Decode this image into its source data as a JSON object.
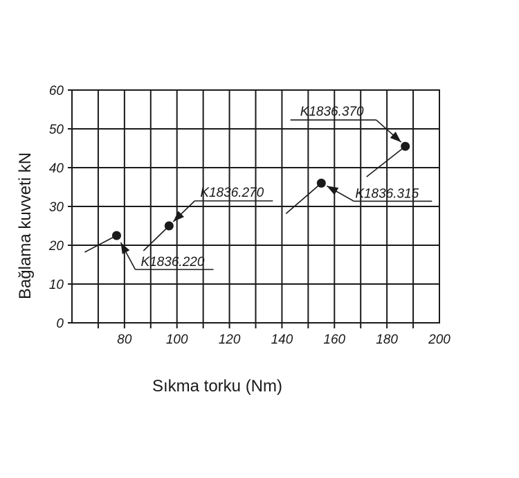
{
  "chart_data": {
    "type": "scatter",
    "xlabel": "Sıkma torku (Nm)",
    "ylabel": "Bağlama kuvveti kN",
    "xlim": [
      60,
      200
    ],
    "ylim": [
      0,
      60
    ],
    "x_ticks": [
      80,
      100,
      120,
      140,
      160,
      180,
      200
    ],
    "y_ticks": [
      0,
      10,
      20,
      30,
      40,
      50,
      60
    ],
    "grid": true,
    "points": [
      {
        "label": "K1836.220",
        "x": 77,
        "y": 22.5
      },
      {
        "label": "K1836.270",
        "x": 97,
        "y": 25
      },
      {
        "label": "K1836.315",
        "x": 155,
        "y": 36
      },
      {
        "label": "K1836.370",
        "x": 187,
        "y": 45.5
      }
    ]
  }
}
